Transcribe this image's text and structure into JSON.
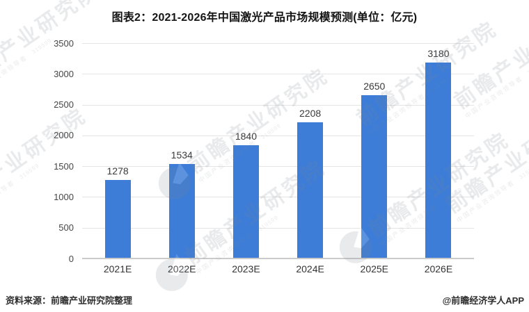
{
  "title": "图表2：2021-2026年中国激光产品市场规模预测(单位：亿元)",
  "footer": {
    "source": "资料来源：前瞻产业研究院整理",
    "credit": "@前瞻经济学人APP"
  },
  "watermark": {
    "logo_icon": "qianzhan-circle-logo",
    "text": "前瞻产业研究院",
    "subtext": "中国产业咨询领导者",
    "digits": "319599"
  },
  "colors": {
    "bar": "#3D7DD8",
    "grid": "#e4e4e4",
    "axis": "#cbcbcb",
    "tick_label": "#454545",
    "value_label": "#3a3a3a",
    "title": "#141414",
    "watermark": "#7d848e"
  },
  "chart_data": {
    "type": "bar",
    "categories": [
      "2021E",
      "2022E",
      "2023E",
      "2024E",
      "2025E",
      "2026E"
    ],
    "values": [
      1278,
      1534,
      1840,
      2208,
      2650,
      3180
    ],
    "title": "图表2：2021-2026年中国激光产品市场规模预测(单位：亿元)",
    "xlabel": "",
    "ylabel": "",
    "unit": "亿元",
    "ylim": [
      0,
      3500
    ],
    "ytick_step": 500,
    "grid": true,
    "legend_position": "none",
    "data_labels": true
  }
}
